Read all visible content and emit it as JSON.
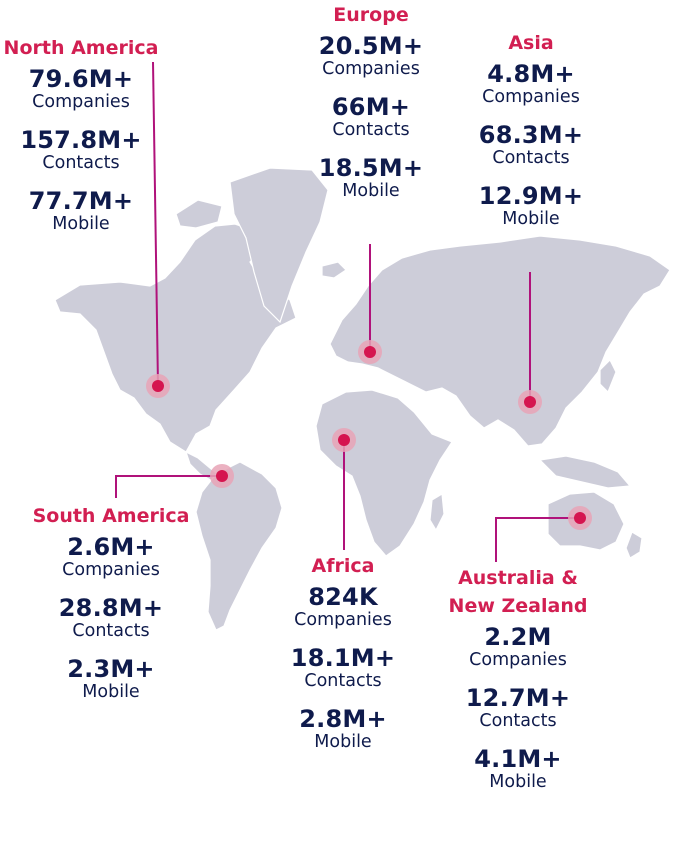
{
  "colors": {
    "region_title": "#d21f52",
    "value_text": "#0f1b4c",
    "land": "#cdcdd9",
    "leader_line": "#b0127a",
    "marker": "#d5154f",
    "marker_halo": "#e8a3b6"
  },
  "regions": {
    "north_america": {
      "name": "North America",
      "stats": [
        {
          "value": "79.6M+",
          "label": "Companies"
        },
        {
          "value": "157.8M+",
          "label": "Contacts"
        },
        {
          "value": "77.7M+",
          "label": "Mobile"
        }
      ]
    },
    "europe": {
      "name": "Europe",
      "stats": [
        {
          "value": "20.5M+",
          "label": "Companies"
        },
        {
          "value": "66M+",
          "label": "Contacts"
        },
        {
          "value": "18.5M+",
          "label": "Mobile"
        }
      ]
    },
    "asia": {
      "name": "Asia",
      "stats": [
        {
          "value": "4.8M+",
          "label": "Companies"
        },
        {
          "value": "68.3M+",
          "label": "Contacts"
        },
        {
          "value": "12.9M+",
          "label": "Mobile"
        }
      ]
    },
    "south_america": {
      "name": "South America",
      "stats": [
        {
          "value": "2.6M+",
          "label": "Companies"
        },
        {
          "value": "28.8M+",
          "label": "Contacts"
        },
        {
          "value": "2.3M+",
          "label": "Mobile"
        }
      ]
    },
    "africa": {
      "name": "Africa",
      "stats": [
        {
          "value": "824K",
          "label": "Companies"
        },
        {
          "value": "18.1M+",
          "label": "Contacts"
        },
        {
          "value": "2.8M+",
          "label": "Mobile"
        }
      ]
    },
    "oceania": {
      "name_line1": "Australia &",
      "name_line2": "New Zealand",
      "stats": [
        {
          "value": "2.2M",
          "label": "Companies"
        },
        {
          "value": "12.7M+",
          "label": "Contacts"
        },
        {
          "value": "4.1M+",
          "label": "Mobile"
        }
      ]
    }
  }
}
